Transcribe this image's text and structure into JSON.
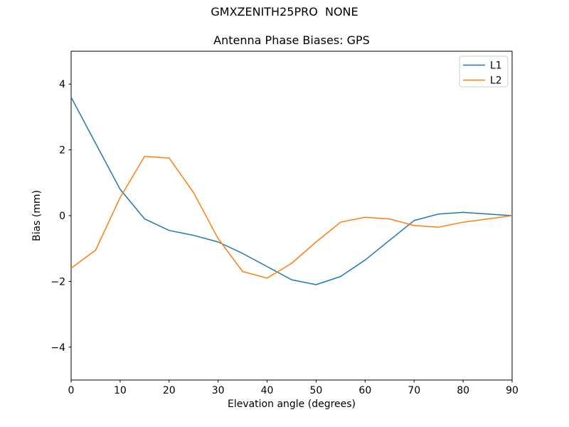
{
  "chart_data": {
    "type": "line",
    "suptitle": "GMXZENITH25PRO  NONE",
    "title": "Antenna Phase Biases: GPS",
    "xlabel": "Elevation angle (degrees)",
    "ylabel": "Bias (mm)",
    "xlim": [
      0,
      90
    ],
    "ylim": [
      -5,
      5
    ],
    "xticks": [
      0,
      10,
      20,
      30,
      40,
      50,
      60,
      70,
      80,
      90
    ],
    "yticks": [
      -4,
      -2,
      0,
      2,
      4
    ],
    "grid": false,
    "legend": {
      "position": "upper right",
      "entries": [
        "L1",
        "L2"
      ]
    },
    "x": [
      0,
      5,
      10,
      15,
      20,
      25,
      30,
      35,
      40,
      45,
      50,
      55,
      60,
      65,
      70,
      75,
      80,
      85,
      90
    ],
    "series": [
      {
        "name": "L1",
        "color": "#1f77b4",
        "values": [
          3.6,
          2.2,
          0.8,
          -0.1,
          -0.45,
          -0.6,
          -0.8,
          -1.15,
          -1.55,
          -1.95,
          -2.1,
          -1.85,
          -1.35,
          -0.75,
          -0.15,
          0.05,
          0.1,
          0.05,
          0.0
        ]
      },
      {
        "name": "L2",
        "color": "#ff7f0e",
        "values": [
          -1.6,
          -1.05,
          0.55,
          1.8,
          1.75,
          0.7,
          -0.7,
          -1.7,
          -1.9,
          -1.45,
          -0.8,
          -0.2,
          -0.05,
          -0.1,
          -0.3,
          -0.35,
          -0.2,
          -0.1,
          0.0
        ]
      }
    ]
  },
  "colors": {
    "background": "#ffffff",
    "axis": "#000000",
    "legend_border": "#cccccc",
    "l1": "#1f77b4",
    "l2": "#ff7f0e"
  }
}
